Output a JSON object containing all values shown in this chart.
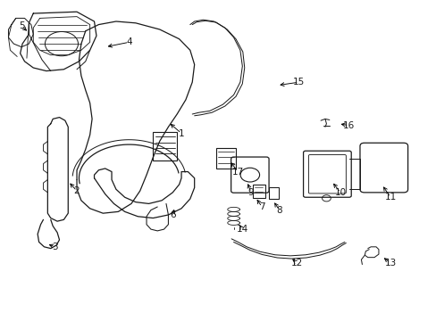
{
  "background_color": "#ffffff",
  "line_color": "#1a1a1a",
  "fig_width": 4.89,
  "fig_height": 3.6,
  "dpi": 100,
  "lw": 0.9,
  "label_fontsize": 7.5,
  "label_arrows": {
    "1": [
      0.415,
      0.415,
      0.385,
      0.38
    ],
    "2": [
      0.175,
      0.595,
      0.155,
      0.565
    ],
    "3": [
      0.125,
      0.77,
      0.105,
      0.76
    ],
    "4": [
      0.295,
      0.13,
      0.24,
      0.145
    ],
    "5": [
      0.048,
      0.08,
      0.065,
      0.1
    ],
    "6": [
      0.395,
      0.67,
      0.4,
      0.645
    ],
    "7": [
      0.6,
      0.645,
      0.585,
      0.615
    ],
    "8": [
      0.64,
      0.655,
      0.625,
      0.625
    ],
    "9": [
      0.575,
      0.6,
      0.565,
      0.565
    ],
    "10": [
      0.78,
      0.6,
      0.76,
      0.565
    ],
    "11": [
      0.895,
      0.615,
      0.875,
      0.575
    ],
    "12": [
      0.68,
      0.82,
      0.665,
      0.805
    ],
    "13": [
      0.895,
      0.82,
      0.875,
      0.8
    ],
    "14": [
      0.555,
      0.715,
      0.545,
      0.695
    ],
    "15": [
      0.685,
      0.255,
      0.635,
      0.265
    ],
    "16": [
      0.8,
      0.39,
      0.775,
      0.385
    ],
    "17": [
      0.545,
      0.535,
      0.525,
      0.5
    ]
  }
}
